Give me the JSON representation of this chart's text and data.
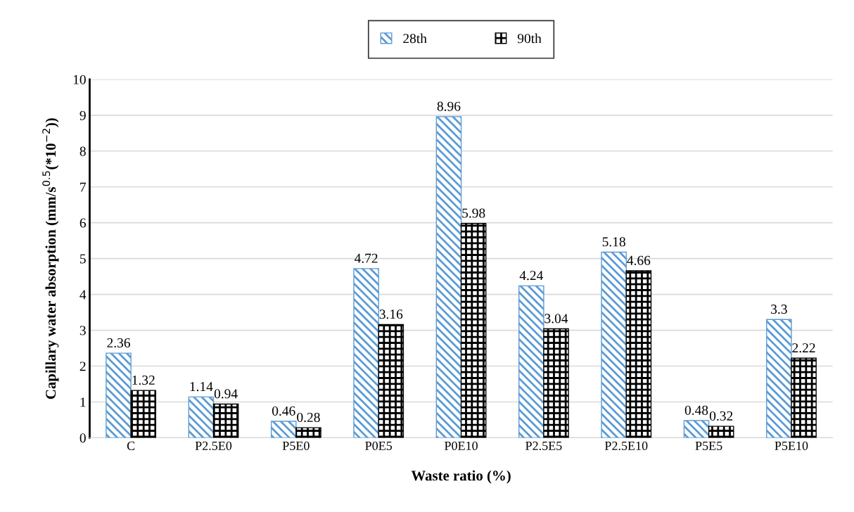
{
  "chart_data": {
    "type": "bar",
    "xlabel": "Waste ratio (%)",
    "ylabel": "Capillary water absorption (mm/s$^{0.5}$(*10$^{−2}$))",
    "categories": [
      "C",
      "P2.5E0",
      "P5E0",
      "P0E5",
      "P0E10",
      "P2.5E5",
      "P2.5E10",
      "P5E5",
      "P5E10"
    ],
    "series": [
      {
        "name": "28th",
        "color": "#5b9bd5",
        "values": [
          2.36,
          1.14,
          0.46,
          4.72,
          8.96,
          4.24,
          5.18,
          0.48,
          3.3
        ]
      },
      {
        "name": "90th",
        "color": "#000000",
        "values": [
          1.32,
          0.94,
          0.28,
          3.16,
          5.98,
          3.04,
          4.66,
          0.32,
          2.22
        ]
      }
    ],
    "ylim": [
      0,
      10
    ],
    "yticks": [
      0,
      1,
      2,
      3,
      4,
      5,
      6,
      7,
      8,
      9,
      10
    ],
    "grid": "y",
    "legend": "top",
    "data_labels": true
  }
}
